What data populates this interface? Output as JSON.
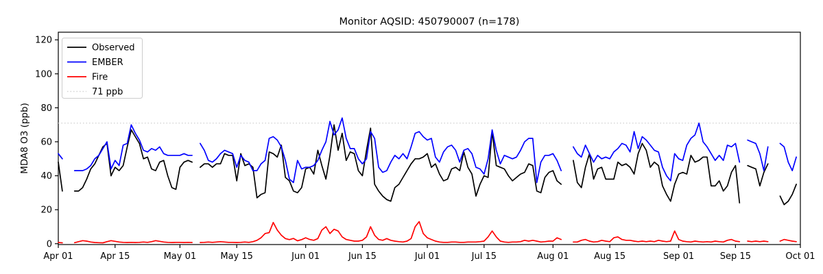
{
  "figure": {
    "title": "Monitor AQSID: 450790007 (n=178)",
    "ylabel": "MDA8 O3 (ppb)",
    "background": "#ffffff",
    "spine_color": "#000000"
  },
  "legend": {
    "items": [
      {
        "label": "Observed",
        "color": "#000000",
        "style": "solid"
      },
      {
        "label": "EMBER",
        "color": "#0000ff",
        "style": "solid"
      },
      {
        "label": "Fire",
        "color": "#ff0000",
        "style": "solid"
      },
      {
        "label": "71 ppb",
        "color": "#d3d3d3",
        "style": "dotted"
      }
    ]
  },
  "chart_data": {
    "type": "line",
    "title": "Monitor AQSID: 450790007 (n=178)",
    "xlabel": "",
    "ylabel": "MDA8 O3 (ppb)",
    "ylim": [
      -0.5,
      124.5
    ],
    "yticks": [
      0,
      20,
      40,
      60,
      80,
      100,
      120
    ],
    "x_tick_days": [
      0,
      14,
      30,
      44,
      61,
      75,
      91,
      105,
      122,
      136,
      153,
      167,
      183
    ],
    "x_tick_labels": [
      "Apr 01",
      "Apr 15",
      "May 01",
      "May 15",
      "Jun 01",
      "Jun 15",
      "Jul 01",
      "Jul 15",
      "Aug 01",
      "Aug 15",
      "Sep 01",
      "Sep 15",
      "Oct 01"
    ],
    "n_days": 183,
    "grid": false,
    "legend_position": "upper-left",
    "threshold": {
      "label": "71 ppb",
      "value": 71,
      "color": "#d3d3d3",
      "style": "dotted"
    },
    "series": [
      {
        "name": "Observed",
        "color": "#000000",
        "values": [
          48,
          31,
          null,
          null,
          31,
          31,
          33,
          38,
          44,
          47,
          52,
          57,
          59,
          40,
          45,
          43,
          46,
          57,
          67,
          63,
          59,
          50,
          51,
          44,
          43,
          48,
          49,
          40,
          33,
          32,
          45,
          48,
          49,
          48,
          null,
          45,
          47,
          47,
          45,
          47,
          47,
          53,
          52,
          52,
          37,
          53,
          46,
          47,
          45,
          27,
          29,
          30,
          54,
          53,
          51,
          58,
          39,
          37,
          31,
          30,
          33,
          44,
          45,
          41,
          55,
          46,
          38,
          52,
          70,
          55,
          65,
          49,
          54,
          53,
          43,
          40,
          55,
          68,
          35,
          31,
          28,
          26,
          25,
          33,
          35,
          39,
          43,
          47,
          50,
          50,
          51,
          53,
          45,
          47,
          41,
          37,
          38,
          44,
          45,
          43,
          54,
          45,
          41,
          28,
          35,
          40,
          39,
          66,
          46,
          45,
          44,
          40,
          37,
          39,
          41,
          42,
          47,
          46,
          31,
          30,
          39,
          42,
          43,
          37,
          35,
          null,
          null,
          49,
          36,
          33,
          45,
          53,
          38,
          44,
          45,
          38,
          38,
          38,
          48,
          46,
          47,
          45,
          41,
          53,
          59,
          55,
          45,
          48,
          46,
          34,
          29,
          25,
          35,
          41,
          42,
          41,
          52,
          48,
          49,
          51,
          51,
          34,
          34,
          37,
          31,
          34,
          42,
          46,
          24,
          null,
          46,
          45,
          44,
          34,
          42,
          47,
          null,
          null,
          28,
          23,
          25,
          29,
          35
        ]
      },
      {
        "name": "EMBER",
        "color": "#0000ff",
        "values": [
          53,
          50,
          null,
          null,
          43,
          43,
          43,
          44,
          46,
          50,
          52,
          56,
          60,
          44,
          49,
          46,
          58,
          59,
          70,
          65,
          61,
          55,
          54,
          56,
          55,
          57,
          53,
          52,
          52,
          52,
          52,
          53,
          52,
          52,
          null,
          59,
          55,
          49,
          48,
          50,
          53,
          55,
          54,
          53,
          45,
          52,
          49,
          48,
          43,
          43,
          47,
          49,
          62,
          63,
          61,
          57,
          49,
          38,
          36,
          49,
          44,
          45,
          45,
          46,
          49,
          55,
          60,
          72,
          64,
          67,
          74,
          62,
          56,
          56,
          50,
          47,
          50,
          66,
          62,
          45,
          42,
          43,
          48,
          52,
          50,
          53,
          50,
          57,
          65,
          66,
          63,
          61,
          62,
          51,
          48,
          54,
          57,
          58,
          55,
          48,
          55,
          56,
          53,
          45,
          44,
          41,
          50,
          67,
          55,
          47,
          52,
          51,
          50,
          51,
          55,
          60,
          62,
          62,
          36,
          48,
          52,
          52,
          53,
          49,
          43,
          null,
          null,
          57,
          53,
          51,
          58,
          53,
          48,
          52,
          50,
          51,
          50,
          54,
          56,
          59,
          58,
          54,
          66,
          56,
          63,
          61,
          58,
          55,
          54,
          45,
          40,
          37,
          53,
          50,
          49,
          58,
          62,
          64,
          71,
          60,
          57,
          53,
          49,
          52,
          49,
          58,
          57,
          59,
          48,
          null,
          61,
          60,
          59,
          53,
          43,
          57,
          null,
          null,
          59,
          57,
          48,
          43,
          51
        ]
      },
      {
        "name": "Fire",
        "color": "#ff0000",
        "values": [
          0.7,
          0.5,
          null,
          null,
          0.6,
          1.2,
          1.8,
          1.5,
          1,
          0.7,
          0.6,
          0.5,
          1.2,
          1.8,
          1.4,
          1,
          0.8,
          0.7,
          0.8,
          0.7,
          0.8,
          1,
          0.8,
          1.2,
          1.8,
          1.4,
          1,
          0.8,
          0.7,
          0.8,
          0.8,
          0.7,
          0.8,
          0.7,
          null,
          0.7,
          0.8,
          1,
          0.8,
          1,
          1.2,
          1,
          0.8,
          0.8,
          0.7,
          0.8,
          1,
          0.8,
          1.2,
          2,
          3.5,
          6,
          6.5,
          12.5,
          8,
          5,
          3,
          2.4,
          3.1,
          1.7,
          2.4,
          3.5,
          2.5,
          2,
          3,
          8,
          10,
          6,
          8.5,
          7.5,
          4,
          2.5,
          2,
          1.5,
          1.5,
          2,
          4,
          10,
          5,
          2.5,
          2,
          3,
          2,
          1.5,
          1.2,
          1,
          1.5,
          3,
          10,
          13,
          6,
          3.5,
          2.5,
          1.5,
          1,
          0.8,
          0.8,
          1,
          1,
          0.8,
          0.8,
          1,
          1,
          1,
          1.2,
          1.5,
          4,
          7.5,
          4,
          1.5,
          1,
          0.8,
          1,
          1,
          1.2,
          2,
          1.5,
          2,
          1.5,
          1,
          1.2,
          1.5,
          1.5,
          3.5,
          2.5,
          null,
          null,
          1,
          1,
          2,
          2.5,
          1.5,
          1,
          1.2,
          2,
          1.5,
          1.2,
          3.5,
          4,
          2.5,
          2,
          2,
          1.5,
          1.2,
          1.5,
          1.2,
          1.5,
          1.2,
          2,
          1.5,
          1.2,
          1.5,
          7.5,
          2.5,
          1.5,
          1.2,
          1,
          1.5,
          1.2,
          1,
          1.2,
          1,
          1.5,
          1.2,
          1,
          2,
          2.5,
          1.5,
          1.2,
          null,
          1.5,
          1.2,
          1.5,
          1.2,
          1.5,
          1.2,
          null,
          null,
          1.5,
          2.5,
          2,
          1.5,
          1.2
        ]
      }
    ]
  },
  "plot_geometry_note": "line chart, black box spines, dotted gray threshold line at 71 ppb"
}
